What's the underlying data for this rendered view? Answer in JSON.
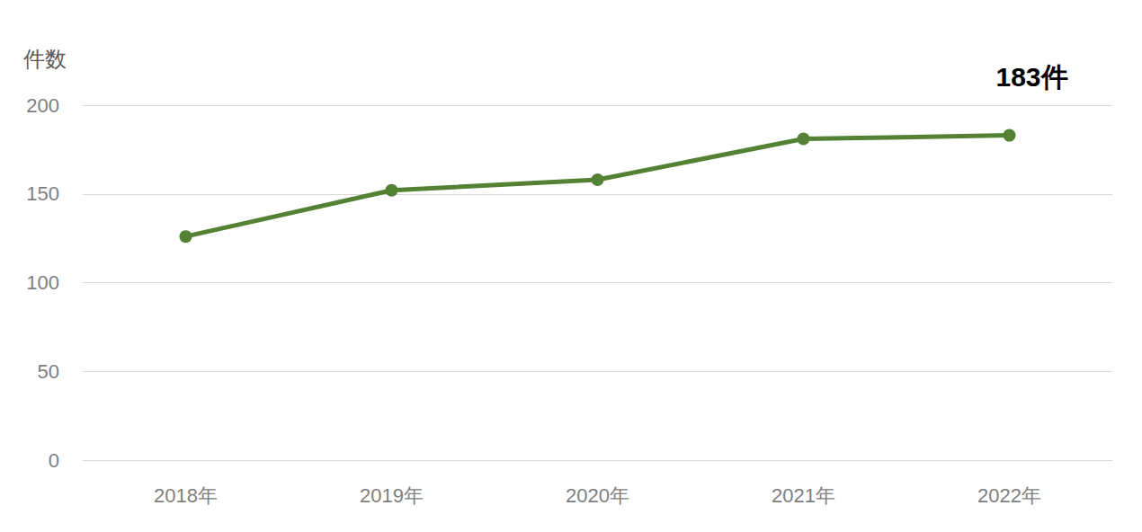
{
  "chart_data": {
    "type": "line",
    "y_label": "件数",
    "categories": [
      "2018年",
      "2019年",
      "2020年",
      "2021年",
      "2022年"
    ],
    "values": [
      126,
      152,
      158,
      181,
      183
    ],
    "value_labels": [
      null,
      null,
      null,
      null,
      "183件"
    ],
    "data_labels": true,
    "color": "#548235",
    "marker": "circle",
    "ylim": [
      0,
      200
    ],
    "yticks": [
      0,
      50,
      100,
      150,
      200
    ],
    "grid": true
  }
}
